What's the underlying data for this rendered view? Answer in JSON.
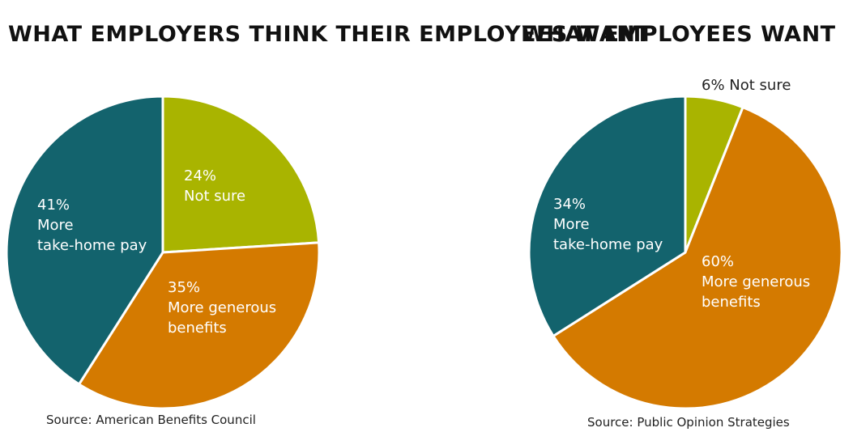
{
  "colors": {
    "take_home_pay": "#13636d",
    "generous_benefits": "#d47a00",
    "not_sure": "#a9b400"
  },
  "chart_data": [
    {
      "type": "pie",
      "title": "WHAT EMPLOYERS THINK THEIR EMPLOYEES WANT",
      "source": "Source: American Benefits Council",
      "slices": [
        {
          "category": "Not sure",
          "value": 24,
          "pct_label": "24%",
          "label_lines": [
            "Not sure"
          ],
          "color": "#a9b400"
        },
        {
          "category": "More generous benefits",
          "value": 35,
          "pct_label": "35%",
          "label_lines": [
            "More generous",
            "benefits"
          ],
          "color": "#d47a00"
        },
        {
          "category": "More take-home pay",
          "value": 41,
          "pct_label": "41%",
          "label_lines": [
            "More",
            "take-home pay"
          ],
          "color": "#13636d"
        }
      ]
    },
    {
      "type": "pie",
      "title": "WHAT EMPLOYEES WANT",
      "source": "Source: Public Opinion Strategies",
      "slices": [
        {
          "category": "Not sure",
          "value": 6,
          "pct_label": "6%",
          "label_lines": [
            "Not sure"
          ],
          "color": "#a9b400"
        },
        {
          "category": "More generous benefits",
          "value": 60,
          "pct_label": "60%",
          "label_lines": [
            "More generous",
            "benefits"
          ],
          "color": "#d47a00"
        },
        {
          "category": "More take-home pay",
          "value": 34,
          "pct_label": "34%",
          "label_lines": [
            "More",
            "take-home pay"
          ],
          "color": "#13636d"
        }
      ]
    }
  ]
}
